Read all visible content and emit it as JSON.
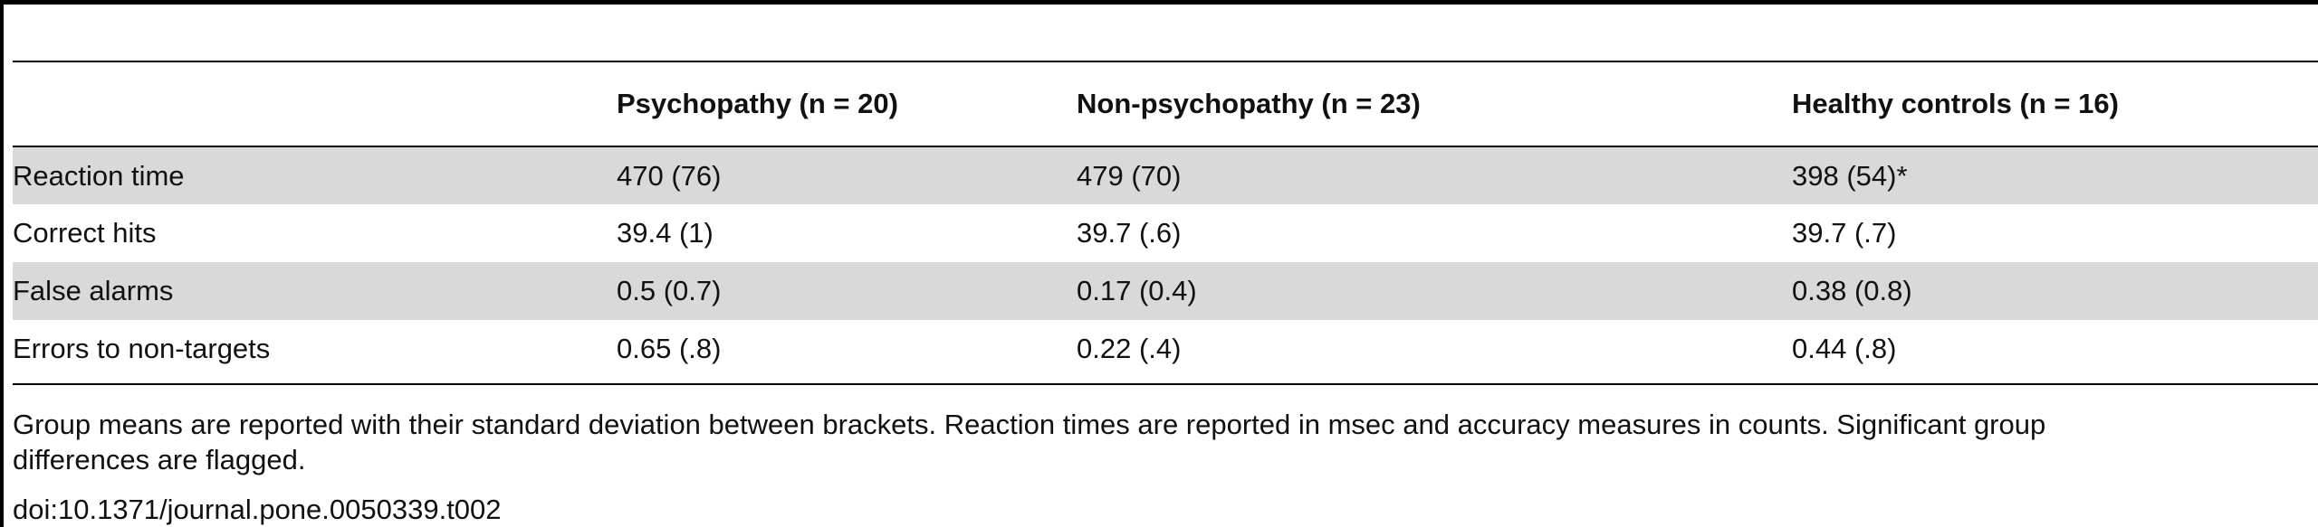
{
  "table": {
    "columns": [
      "",
      "Psychopathy (n = 20)",
      "Non-psychopathy (n = 23)",
      "Healthy controls (n = 16)"
    ],
    "rows": [
      {
        "label": "Reaction time",
        "values": [
          "470 (76)",
          "479 (70)",
          "398 (54)*"
        ]
      },
      {
        "label": "Correct hits",
        "values": [
          "39.4 (1)",
          "39.7 (.6)",
          "39.7 (.7)"
        ]
      },
      {
        "label": "False alarms",
        "values": [
          "0.5 (0.7)",
          "0.17 (0.4)",
          "0.38 (0.8)"
        ]
      },
      {
        "label": "Errors to non-targets",
        "values": [
          "0.65 (.8)",
          "0.22 (.4)",
          "0.44 (.8)"
        ]
      }
    ]
  },
  "footnote": {
    "line1": "Group means are reported with their standard deviation between brackets. Reaction times are reported in msec and accuracy measures in counts. Significant group",
    "line2": "differences are flagged."
  },
  "doi": "doi:10.1371/journal.pone.0050339.t002"
}
